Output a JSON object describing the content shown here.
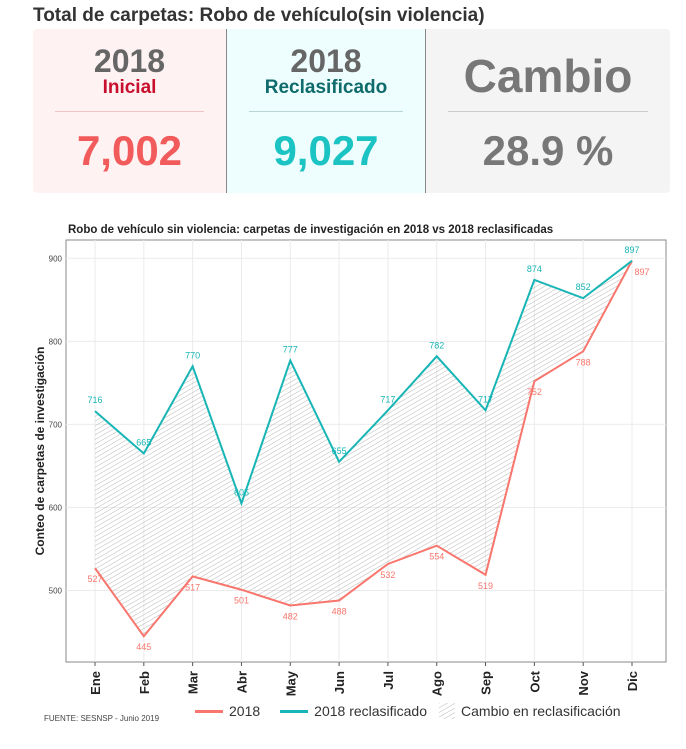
{
  "header": {
    "title": "Total de carpetas: Robo de vehículo(sin violencia)"
  },
  "cards": [
    {
      "year": "2018",
      "label": "Inicial",
      "value": "7,002"
    },
    {
      "year": "2018",
      "label": "Reclasificado",
      "value": "9,027"
    },
    {
      "label": "Cambio",
      "value": "28.9 %"
    }
  ],
  "colors": {
    "red": "#f8766d",
    "teal": "#17b5b5",
    "label_red": "#c8102e",
    "label_teal": "#0f6b6b"
  },
  "chart_data": {
    "type": "line",
    "title": "Robo de vehículo sin violencia: carpetas de investigación en 2018 vs 2018 reclasificadas",
    "xlabel": "",
    "ylabel": "Conteo de carpetas de investigación",
    "categories": [
      "Ene",
      "Feb",
      "Mar",
      "Abr",
      "May",
      "Jun",
      "Jul",
      "Ago",
      "Sep",
      "Oct",
      "Nov",
      "Dic"
    ],
    "series": [
      {
        "name": "2018",
        "values": [
          527,
          445,
          517,
          501,
          482,
          488,
          532,
          554,
          519,
          752,
          788,
          897
        ]
      },
      {
        "name": "2018 reclasificado",
        "values": [
          716,
          665,
          770,
          605,
          777,
          655,
          717,
          782,
          717,
          874,
          852,
          897
        ]
      }
    ],
    "yticks": [
      500,
      600,
      700,
      800,
      900
    ],
    "ylim": [
      414,
      922
    ],
    "legend": {
      "position": "bottom",
      "area_label": "Cambio en reclasificación"
    },
    "grid": true
  },
  "footer": {
    "source": "FUENTE: SESNSP - Junio 2019"
  }
}
